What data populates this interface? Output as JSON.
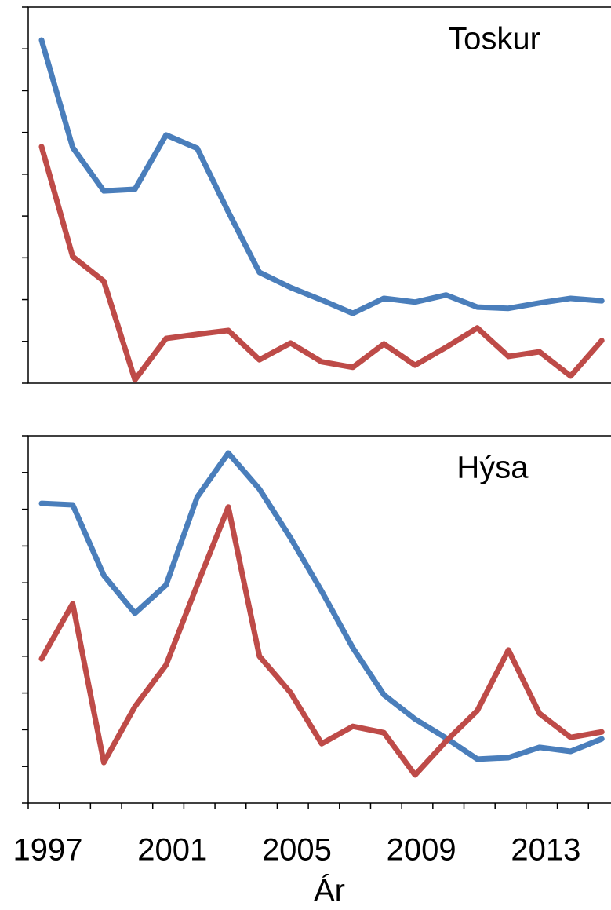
{
  "chart_data": [
    {
      "type": "line",
      "title": "Toskur",
      "ylim": [
        0,
        9
      ],
      "yticks": [
        0,
        1,
        2,
        3,
        4,
        5,
        6,
        7,
        8,
        9
      ],
      "series": [
        {
          "color": "#4a7ebb",
          "values": [
            8.21,
            5.64,
            4.6,
            4.64,
            5.94,
            5.62,
            4.1,
            2.65,
            2.29,
            1.99,
            1.67,
            2.03,
            1.94,
            2.11,
            1.82,
            1.79,
            1.92,
            2.03,
            1.97
          ]
        },
        {
          "color": "#be4b48",
          "values": [
            5.66,
            3.03,
            2.44,
            0.08,
            1.07,
            1.17,
            1.26,
            0.56,
            0.96,
            0.51,
            0.38,
            0.94,
            0.43,
            0.86,
            1.32,
            0.64,
            0.75,
            0.17,
            1.02
          ]
        }
      ]
    },
    {
      "type": "line",
      "title": "Hýsa",
      "x_label": "Ár",
      "categories": [
        "1997",
        null,
        null,
        null,
        "2001",
        null,
        null,
        null,
        "2005",
        null,
        null,
        null,
        "2009",
        null,
        null,
        null,
        "2013",
        null,
        null
      ],
      "ylim": [
        0,
        10
      ],
      "yticks": [
        0,
        1,
        2,
        3,
        4,
        5,
        6,
        7,
        8,
        9,
        10
      ],
      "series": [
        {
          "color": "#4a7ebb",
          "values": [
            8.16,
            8.12,
            6.2,
            5.17,
            5.94,
            8.33,
            9.53,
            8.55,
            7.22,
            5.77,
            4.23,
            2.95,
            2.29,
            1.77,
            1.2,
            1.24,
            1.52,
            1.41,
            1.75
          ]
        },
        {
          "color": "#be4b48",
          "values": [
            3.93,
            5.43,
            1.11,
            2.63,
            3.76,
            5.94,
            8.06,
            4.0,
            3.01,
            1.62,
            2.09,
            1.92,
            0.77,
            1.69,
            2.52,
            4.17,
            2.44,
            1.79,
            1.94
          ]
        }
      ]
    }
  ]
}
